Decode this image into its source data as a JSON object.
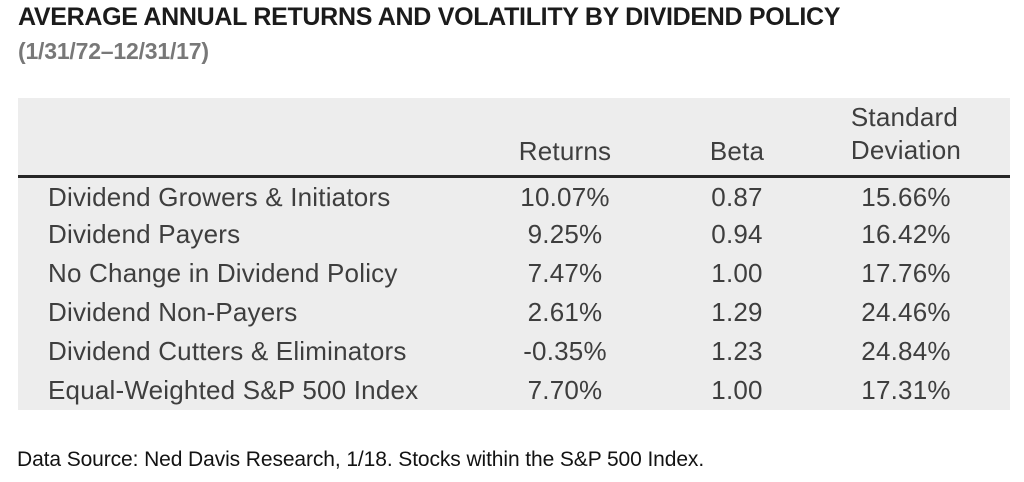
{
  "header": {
    "title": "AVERAGE ANNUAL RETURNS AND VOLATILITY BY DIVIDEND POLICY",
    "date_range": "(1/31/72–12/31/17)"
  },
  "table": {
    "col_returns": "Returns",
    "col_beta": "Beta",
    "col_std_line1": "Standard",
    "col_std_line2": "Deviation",
    "rows": [
      {
        "label": "Dividend Growers & Initiators",
        "returns": "10.07%",
        "beta": "0.87",
        "std_dev": "15.66%"
      },
      {
        "label": "Dividend Payers",
        "returns": "9.25%",
        "beta": "0.94",
        "std_dev": "16.42%"
      },
      {
        "label": "No Change in Dividend Policy",
        "returns": "7.47%",
        "beta": "1.00",
        "std_dev": "17.76%"
      },
      {
        "label": "Dividend Non-Payers",
        "returns": "2.61%",
        "beta": "1.29",
        "std_dev": "24.46%"
      },
      {
        "label": "Dividend Cutters & Eliminators",
        "returns": "-0.35%",
        "beta": "1.23",
        "std_dev": "24.84%"
      },
      {
        "label": "Equal-Weighted S&P 500 Index",
        "returns": "7.70%",
        "beta": "1.00",
        "std_dev": "17.31%"
      }
    ]
  },
  "footer": {
    "note": "Data Source: Ned Davis Research, 1/18. Stocks within the S&P 500 Index."
  },
  "colors": {
    "table_background": "#ededed",
    "header_rule": "#262626",
    "table_text": "#3e3e3e",
    "title_text": "#1b1b1b",
    "subtitle_text": "#787878"
  },
  "chart_data": {
    "type": "table",
    "title": "AVERAGE ANNUAL RETURNS AND VOLATILITY BY DIVIDEND POLICY",
    "subtitle": "(1/31/72–12/31/17)",
    "columns": [
      "Returns",
      "Beta",
      "Standard Deviation"
    ],
    "rows": [
      {
        "category": "Dividend Growers & Initiators",
        "returns_pct": 10.07,
        "beta": 0.87,
        "std_dev_pct": 15.66
      },
      {
        "category": "Dividend Payers",
        "returns_pct": 9.25,
        "beta": 0.94,
        "std_dev_pct": 16.42
      },
      {
        "category": "No Change in Dividend Policy",
        "returns_pct": 7.47,
        "beta": 1.0,
        "std_dev_pct": 17.76
      },
      {
        "category": "Dividend Non-Payers",
        "returns_pct": 2.61,
        "beta": 1.29,
        "std_dev_pct": 24.46
      },
      {
        "category": "Dividend Cutters & Eliminators",
        "returns_pct": -0.35,
        "beta": 1.23,
        "std_dev_pct": 24.84
      },
      {
        "category": "Equal-Weighted S&P 500 Index",
        "returns_pct": 7.7,
        "beta": 1.0,
        "std_dev_pct": 17.31
      }
    ],
    "source_note": "Data Source: Ned Davis Research, 1/18. Stocks within the S&P 500 Index.",
    "layout": {
      "grid": false,
      "legend": "none",
      "header_rule": true
    }
  }
}
